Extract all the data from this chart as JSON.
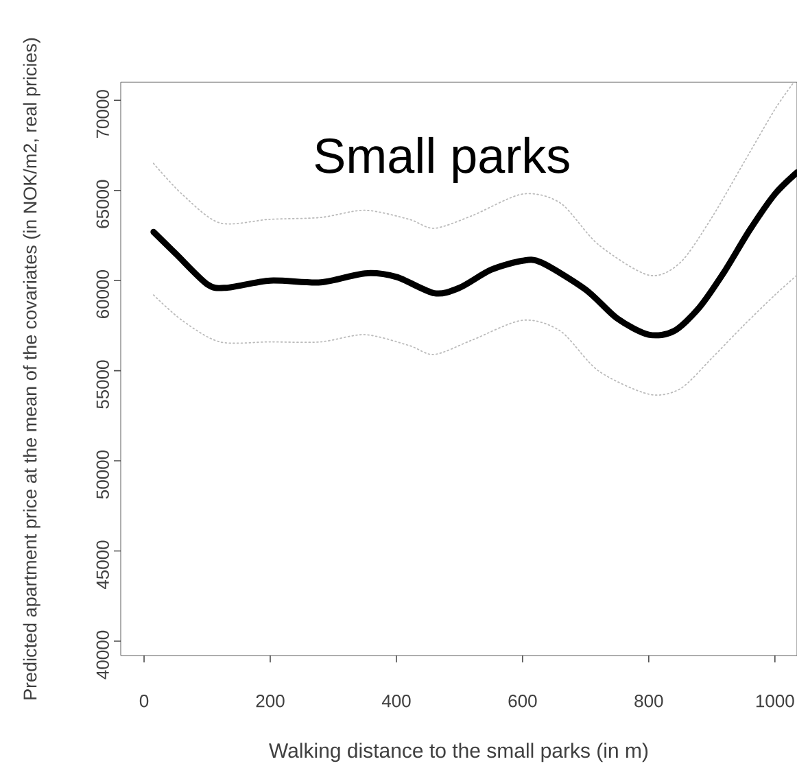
{
  "chart_data": {
    "type": "line",
    "title": "Small parks",
    "xlabel": "Walking distance to the small parks (in m)",
    "ylabel": "Predicted apartment price at the mean of the covariates (in NOK/m2, real pricies)",
    "xlim": [
      -37,
      1035
    ],
    "ylim": [
      39200,
      71000
    ],
    "xticks": [
      0,
      200,
      400,
      600,
      800,
      1000
    ],
    "yticks": [
      40000,
      45000,
      50000,
      55000,
      60000,
      65000,
      70000
    ],
    "grid": false,
    "series": [
      {
        "color": "#bbbbbb",
        "line_style": "dotted",
        "x": [
          15,
          60,
          120,
          200,
          280,
          350,
          420,
          460,
          520,
          600,
          660,
          720,
          800,
          850,
          900,
          950,
          1000,
          1030
        ],
        "values": [
          66500,
          64800,
          63200,
          63400,
          63500,
          63900,
          63400,
          62900,
          63600,
          64800,
          64300,
          62000,
          60300,
          61000,
          63500,
          66500,
          69500,
          71000
        ]
      },
      {
        "color": "#bbbbbb",
        "line_style": "dotted",
        "x": [
          15,
          60,
          120,
          200,
          280,
          350,
          420,
          460,
          520,
          600,
          660,
          720,
          800,
          850,
          900,
          950,
          1000,
          1035
        ],
        "values": [
          59200,
          57800,
          56600,
          56600,
          56600,
          57000,
          56400,
          55900,
          56700,
          57800,
          57200,
          55000,
          53700,
          54000,
          55700,
          57500,
          59200,
          60300
        ]
      },
      {
        "color": "#000000",
        "line_style": "solid",
        "x": [
          15,
          50,
          100,
          130,
          200,
          280,
          350,
          400,
          460,
          500,
          550,
          600,
          630,
          700,
          750,
          800,
          840,
          880,
          920,
          960,
          1000,
          1035
        ],
        "values": [
          62700,
          61500,
          59800,
          59600,
          60000,
          59900,
          60400,
          60200,
          59300,
          59600,
          60600,
          61100,
          61000,
          59500,
          57900,
          57000,
          57200,
          58500,
          60500,
          62800,
          64800,
          66000
        ]
      }
    ]
  }
}
